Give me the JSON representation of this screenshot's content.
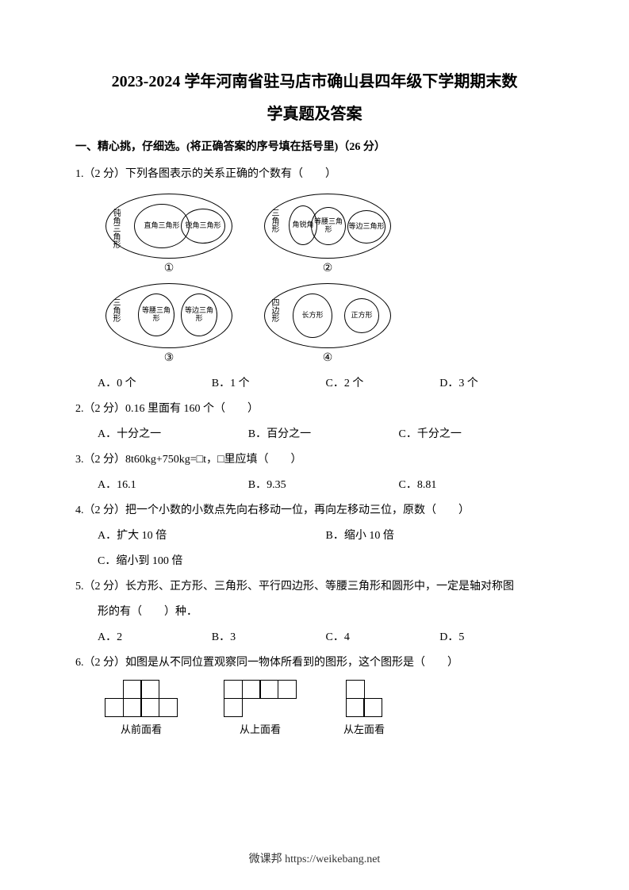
{
  "title_line1": "2023-2024 学年河南省驻马店市确山县四年级下学期期末数",
  "title_line2": "学真题及答案",
  "section1_header": "一、精心挑，仔细选。(将正确答案的序号填在括号里)（26 分）",
  "q1": {
    "text": "1.（2 分）下列各图表示的关系正确的个数有（　　）",
    "diagrams": {
      "d1": {
        "outer": "钝角三角形",
        "mid": "直角三角形",
        "inner": "锐角三角形",
        "label": "①"
      },
      "d2": {
        "outer": "三角形",
        "mid1": "角锐角",
        "mid2": "等腰三角形",
        "inner": "等边三角形",
        "label": "②"
      },
      "d3": {
        "outer": "三角形",
        "mid1": "等腰三角形",
        "mid2": "等边三角形",
        "label": "③"
      },
      "d4": {
        "outer": "四边形",
        "mid": "长方形",
        "inner": "正方形",
        "label": "④"
      }
    },
    "opts": {
      "a": "A．0 个",
      "b": "B．1 个",
      "c": "C．2 个",
      "d": "D．3 个"
    }
  },
  "q2": {
    "text": "2.（2 分）0.16 里面有 160 个（　　）",
    "opts": {
      "a": "A．十分之一",
      "b": "B．百分之一",
      "c": "C．千分之一"
    }
  },
  "q3": {
    "text": "3.（2 分）8t60kg+750kg=□t，□里应填（　　）",
    "opts": {
      "a": "A．16.1",
      "b": "B．9.35",
      "c": "C．8.81"
    }
  },
  "q4": {
    "text": "4.（2 分）把一个小数的小数点先向右移动一位，再向左移动三位，原数（　　）",
    "opts": {
      "a": "A．扩大 10 倍",
      "b": "B．缩小 10 倍",
      "c": "C．缩小到 100 倍"
    }
  },
  "q5": {
    "text": "5.（2 分）长方形、正方形、三角形、平行四边形、等腰三角形和圆形中，一定是轴对称图",
    "text2": "形的有（　　）种．",
    "opts": {
      "a": "A．2",
      "b": "B．3",
      "c": "C．4",
      "d": "D．5"
    }
  },
  "q6": {
    "text": "6.（2 分）如图是从不同位置观察同一物体所看到的图形，这个图形是（　　）",
    "views": {
      "front": {
        "label": "从前面看",
        "grid": [
          [
            0,
            1,
            1,
            0
          ],
          [
            1,
            1,
            1,
            1
          ]
        ]
      },
      "top": {
        "label": "从上面看",
        "grid": [
          [
            1,
            1,
            1,
            1
          ],
          [
            1,
            0,
            0,
            0
          ]
        ]
      },
      "left": {
        "label": "从左面看",
        "grid": [
          [
            1,
            0
          ],
          [
            1,
            1
          ]
        ]
      }
    }
  },
  "footer": "微课邦 https://weikebang.net",
  "colors": {
    "text": "#000000",
    "background": "#ffffff",
    "border": "#000000"
  },
  "fonts": {
    "title_size_pt": 15,
    "body_size_pt": 10.5,
    "title_weight": "bold"
  }
}
